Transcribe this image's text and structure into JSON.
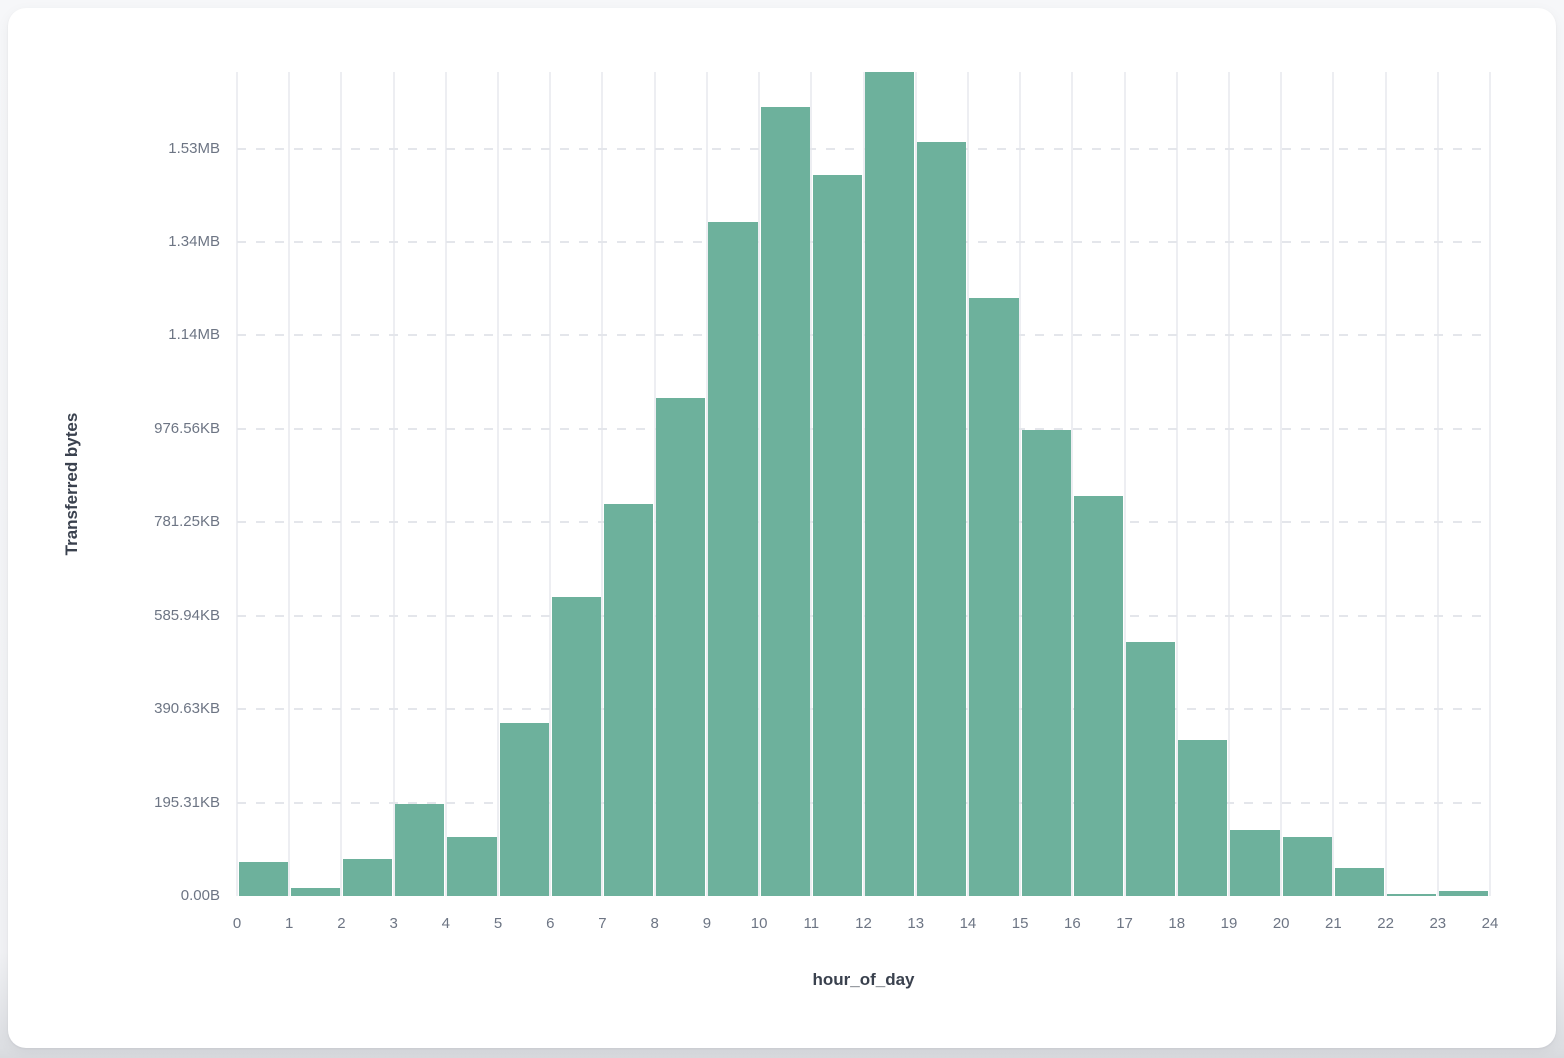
{
  "chart_data": {
    "type": "bar",
    "title": "",
    "xlabel": "hour_of_day",
    "ylabel": "Transferred bytes",
    "categories": [
      0,
      1,
      2,
      3,
      4,
      5,
      6,
      7,
      8,
      9,
      10,
      11,
      12,
      13,
      14,
      15,
      16,
      17,
      18,
      19,
      20,
      21,
      22,
      23
    ],
    "values_bytes": [
      73000,
      17000,
      79000,
      196000,
      126000,
      370000,
      640000,
      839000,
      1066000,
      1443000,
      1689000,
      1543000,
      1764000,
      1614000,
      1280000,
      997000,
      856000,
      544000,
      334000,
      141000,
      126000,
      60000,
      4000,
      11000
    ],
    "x_tick_labels": [
      "0",
      "1",
      "2",
      "3",
      "4",
      "5",
      "6",
      "7",
      "8",
      "9",
      "10",
      "11",
      "12",
      "13",
      "14",
      "15",
      "16",
      "17",
      "18",
      "19",
      "20",
      "21",
      "22",
      "23",
      "24"
    ],
    "y_tick_labels": [
      "0.00B",
      "195.31KB",
      "390.63KB",
      "585.94KB",
      "781.25KB",
      "976.56KB",
      "1.14MB",
      "1.34MB",
      "1.53MB"
    ],
    "y_tick_values_bytes": [
      0,
      200000,
      400000,
      600000,
      800000,
      1000000,
      1200000,
      1400000,
      1600000
    ],
    "ylim": [
      0,
      1764000
    ],
    "bar_color": "#6db19c",
    "grid": true,
    "legend_position": "none"
  }
}
